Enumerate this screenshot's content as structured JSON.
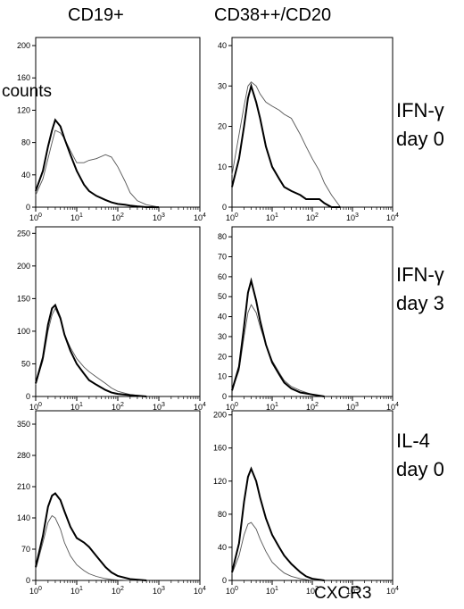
{
  "columns": [
    "CD19+",
    "CD38++/CD20"
  ],
  "rows": [
    {
      "line1": "IFN-γ",
      "line2": "day 0"
    },
    {
      "line1": "IFN-γ",
      "line2": "day 3"
    },
    {
      "line1": "IL-4",
      "line2": "day 0"
    }
  ],
  "ylabel": "counts",
  "xlabel": "CXCR3",
  "chart_data": [
    {
      "type": "line",
      "panel": "CD19+ / IFN-γ day 0",
      "x_scale": "log",
      "xlim": [
        1,
        10000
      ],
      "x_ticks": [
        "10^0",
        "10^1",
        "10^2",
        "10^3",
        "10^4"
      ],
      "ylim": [
        0,
        210
      ],
      "y_ticks": [
        0,
        40,
        80,
        120,
        160,
        200
      ],
      "x": [
        1,
        1.5,
        2,
        2.5,
        3,
        4,
        5,
        7,
        10,
        15,
        20,
        30,
        50,
        70,
        100,
        150,
        200,
        300,
        500,
        1000
      ],
      "series": [
        {
          "style": "thick",
          "values": [
            20,
            45,
            75,
            95,
            108,
            100,
            85,
            65,
            45,
            28,
            20,
            14,
            9,
            6,
            4,
            3,
            2,
            1,
            0,
            0
          ]
        },
        {
          "style": "thin",
          "values": [
            15,
            35,
            60,
            80,
            95,
            92,
            85,
            70,
            55,
            55,
            58,
            60,
            65,
            62,
            50,
            32,
            18,
            8,
            3,
            0
          ]
        }
      ]
    },
    {
      "type": "line",
      "panel": "CD38++/CD20 / IFN-γ day 0",
      "x_scale": "log",
      "xlim": [
        1,
        10000
      ],
      "x_ticks": [
        "10^0",
        "10^1",
        "10^2",
        "10^3",
        "10^4"
      ],
      "ylim": [
        0,
        42
      ],
      "y_ticks": [
        0,
        10,
        20,
        30,
        40
      ],
      "x": [
        1,
        1.5,
        2,
        2.5,
        3,
        4,
        5,
        7,
        10,
        15,
        20,
        30,
        50,
        70,
        100,
        150,
        200,
        300,
        500
      ],
      "series": [
        {
          "style": "thick",
          "values": [
            5,
            12,
            20,
            27,
            30,
            26,
            22,
            15,
            10,
            7,
            5,
            4,
            3,
            2,
            2,
            2,
            1,
            0,
            0
          ]
        },
        {
          "style": "thin",
          "values": [
            8,
            18,
            25,
            30,
            31,
            30,
            28,
            26,
            25,
            24,
            23,
            22,
            18,
            15,
            12,
            9,
            6,
            3,
            0
          ]
        }
      ]
    },
    {
      "type": "line",
      "panel": "CD19+ / IFN-γ day 3",
      "x_scale": "log",
      "xlim": [
        1,
        10000
      ],
      "x_ticks": [
        "10^0",
        "10^1",
        "10^2",
        "10^3",
        "10^4"
      ],
      "ylim": [
        0,
        260
      ],
      "y_ticks": [
        0,
        50,
        100,
        150,
        200,
        250
      ],
      "x": [
        1,
        1.5,
        2,
        2.5,
        3,
        4,
        5,
        7,
        10,
        15,
        20,
        30,
        50,
        70,
        100,
        200,
        500
      ],
      "series": [
        {
          "style": "thick",
          "values": [
            20,
            60,
            110,
            135,
            140,
            120,
            95,
            70,
            50,
            35,
            25,
            18,
            10,
            6,
            4,
            2,
            0
          ]
        },
        {
          "style": "thin",
          "values": [
            18,
            55,
            100,
            125,
            135,
            118,
            95,
            75,
            58,
            45,
            38,
            30,
            20,
            13,
            8,
            3,
            0
          ]
        }
      ]
    },
    {
      "type": "line",
      "panel": "CD38++/CD20 / IFN-γ day 3",
      "x_scale": "log",
      "xlim": [
        1,
        10000
      ],
      "x_ticks": [
        "10^0",
        "10^1",
        "10^2",
        "10^3",
        "10^4"
      ],
      "ylim": [
        0,
        85
      ],
      "y_ticks": [
        0,
        10,
        20,
        30,
        40,
        50,
        60,
        70,
        80
      ],
      "x": [
        1,
        1.5,
        2,
        2.5,
        3,
        4,
        5,
        7,
        10,
        15,
        20,
        30,
        50,
        100,
        200
      ],
      "series": [
        {
          "style": "thick",
          "values": [
            3,
            15,
            35,
            52,
            58,
            48,
            38,
            26,
            17,
            11,
            7,
            4,
            2,
            1,
            0
          ]
        },
        {
          "style": "thin",
          "values": [
            3,
            13,
            30,
            42,
            46,
            42,
            35,
            26,
            18,
            12,
            8,
            5,
            3,
            1,
            0
          ]
        }
      ]
    },
    {
      "type": "line",
      "panel": "CD19+ / IL-4 day 0",
      "x_scale": "log",
      "xlim": [
        1,
        10000
      ],
      "x_ticks": [
        "10^0",
        "10^1",
        "10^2",
        "10^3",
        "10^4"
      ],
      "ylim": [
        0,
        380
      ],
      "y_ticks": [
        0,
        70,
        140,
        210,
        280,
        350
      ],
      "x": [
        1,
        1.5,
        2,
        2.5,
        3,
        4,
        5,
        7,
        10,
        15,
        20,
        30,
        50,
        70,
        100,
        200,
        500
      ],
      "series": [
        {
          "style": "thick",
          "values": [
            30,
            100,
            165,
            190,
            195,
            180,
            155,
            120,
            95,
            85,
            75,
            55,
            30,
            18,
            10,
            3,
            0
          ]
        },
        {
          "style": "thin",
          "values": [
            25,
            85,
            130,
            145,
            140,
            115,
            85,
            55,
            35,
            22,
            15,
            9,
            4,
            2,
            1,
            0,
            0
          ]
        }
      ]
    },
    {
      "type": "line",
      "panel": "CD38++/CD20 / IL-4 day 0",
      "x_scale": "log",
      "xlim": [
        1,
        10000
      ],
      "x_ticks": [
        "10^0",
        "10^1",
        "10^2",
        "10^3",
        "10^4"
      ],
      "ylim": [
        0,
        205
      ],
      "y_ticks": [
        0,
        40,
        80,
        120,
        160,
        200
      ],
      "x": [
        1,
        1.5,
        2,
        2.5,
        3,
        4,
        5,
        7,
        10,
        15,
        20,
        30,
        50,
        70,
        100,
        200
      ],
      "series": [
        {
          "style": "thick",
          "values": [
            10,
            45,
            95,
            125,
            135,
            120,
            100,
            75,
            55,
            40,
            30,
            20,
            10,
            5,
            2,
            0
          ]
        },
        {
          "style": "thin",
          "values": [
            8,
            30,
            55,
            68,
            70,
            62,
            50,
            35,
            22,
            14,
            9,
            5,
            2,
            1,
            0,
            0
          ]
        }
      ]
    }
  ]
}
